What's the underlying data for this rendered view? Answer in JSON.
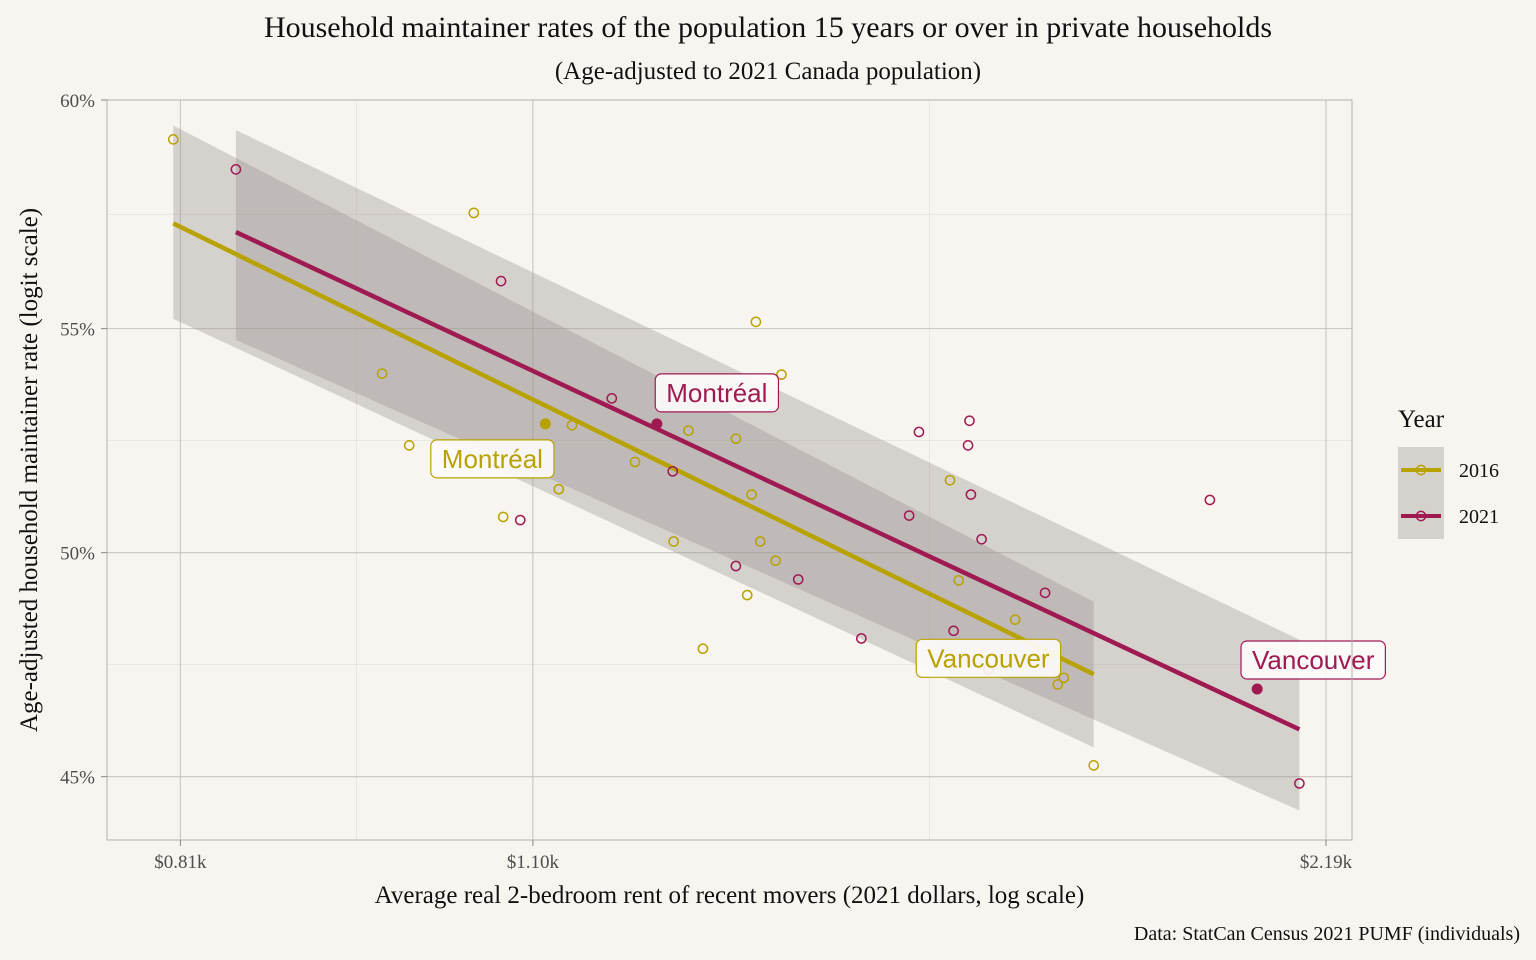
{
  "chart_data": {
    "type": "scatter",
    "title": "Household maintainer rates of the population 15 years or over in private households",
    "subtitle": "(Age-adjusted to 2021 Canada population)",
    "xlabel": "Average real 2-bedroom rent of recent movers (2021 dollars, log scale)",
    "ylabel": "Age-adjusted household maintainer rate (logit scale)",
    "caption": "Data: StatCan Census 2021 PUMF (individuals)",
    "x_scale": "log",
    "y_scale": "logit",
    "xlim": [
      760,
      2240
    ],
    "ylim": [
      0.436,
      0.6
    ],
    "x_ticks": [
      {
        "value": 810,
        "label": "$0.81k"
      },
      {
        "value": 1100,
        "label": "$1.10k"
      },
      {
        "value": 2190,
        "label": "$2.19k"
      }
    ],
    "y_ticks": [
      {
        "value": 0.45,
        "label": "45%"
      },
      {
        "value": 0.5,
        "label": "50%"
      },
      {
        "value": 0.55,
        "label": "55%"
      },
      {
        "value": 0.6,
        "label": "60%"
      }
    ],
    "grid": true,
    "legend": {
      "title": "Year",
      "position": "right"
    },
    "series": [
      {
        "name": "2016",
        "color": "#b8a200",
        "points": [
          [
            805,
            0.5915
          ],
          [
            965,
            0.54
          ],
          [
            988,
            0.524
          ],
          [
            1045,
            0.5755
          ],
          [
            1072,
            0.508
          ],
          [
            1125,
            0.5142
          ],
          [
            1138,
            0.5285
          ],
          [
            1202,
            0.5203
          ],
          [
            1243,
            0.5025
          ],
          [
            1259,
            0.5273
          ],
          [
            1275,
            0.4785
          ],
          [
            1312,
            0.5255
          ],
          [
            1325,
            0.4905
          ],
          [
            1330,
            0.513
          ],
          [
            1335,
            0.5515
          ],
          [
            1340,
            0.5025
          ],
          [
            1358,
            0.4982
          ],
          [
            1365,
            0.5398
          ],
          [
            1580,
            0.5162
          ],
          [
            1592,
            0.4938
          ],
          [
            1672,
            0.485
          ],
          [
            1735,
            0.4705
          ],
          [
            1744,
            0.472
          ],
          [
            1790,
            0.4525
          ]
        ],
        "highlight": [
          {
            "label": "Montréal",
            "x": 1112,
            "y": 0.5288
          },
          {
            "label": "Vancouver",
            "x": 1718,
            "y": 0.4768
          }
        ],
        "fit": {
          "x": [
            805,
            1790
          ],
          "y": [
            0.5732,
            0.4728
          ]
        },
        "band": {
          "upper": [
            0.5945,
            0.489
          ],
          "lower": [
            0.5522,
            0.4565
          ]
        }
      },
      {
        "name": "2021",
        "color": "#a01a52",
        "points": [
          [
            850,
            0.585
          ],
          [
            1070,
            0.5605
          ],
          [
            1088,
            0.5073
          ],
          [
            1178,
            0.5345
          ],
          [
            1242,
            0.5182
          ],
          [
            1312,
            0.497
          ],
          [
            1385,
            0.494
          ],
          [
            1463,
            0.4808
          ],
          [
            1525,
            0.5083
          ],
          [
            1538,
            0.527
          ],
          [
            1585,
            0.4825
          ],
          [
            1605,
            0.524
          ],
          [
            1607,
            0.5295
          ],
          [
            1609,
            0.513
          ],
          [
            1624,
            0.503
          ],
          [
            1634,
            0.4738
          ],
          [
            1716,
            0.491
          ],
          [
            1980,
            0.5118
          ],
          [
            2140,
            0.4485
          ]
        ],
        "highlight": [
          {
            "label": "Montréal",
            "x": 1225,
            "y": 0.5288
          },
          {
            "label": "Vancouver",
            "x": 2063,
            "y": 0.4695
          }
        ],
        "fit": {
          "x": [
            850,
            2140
          ],
          "y": [
            0.5713,
            0.4605
          ]
        },
        "band": {
          "upper": [
            0.5935,
            0.4805
          ],
          "lower": [
            0.5475,
            0.4425
          ]
        }
      }
    ]
  }
}
